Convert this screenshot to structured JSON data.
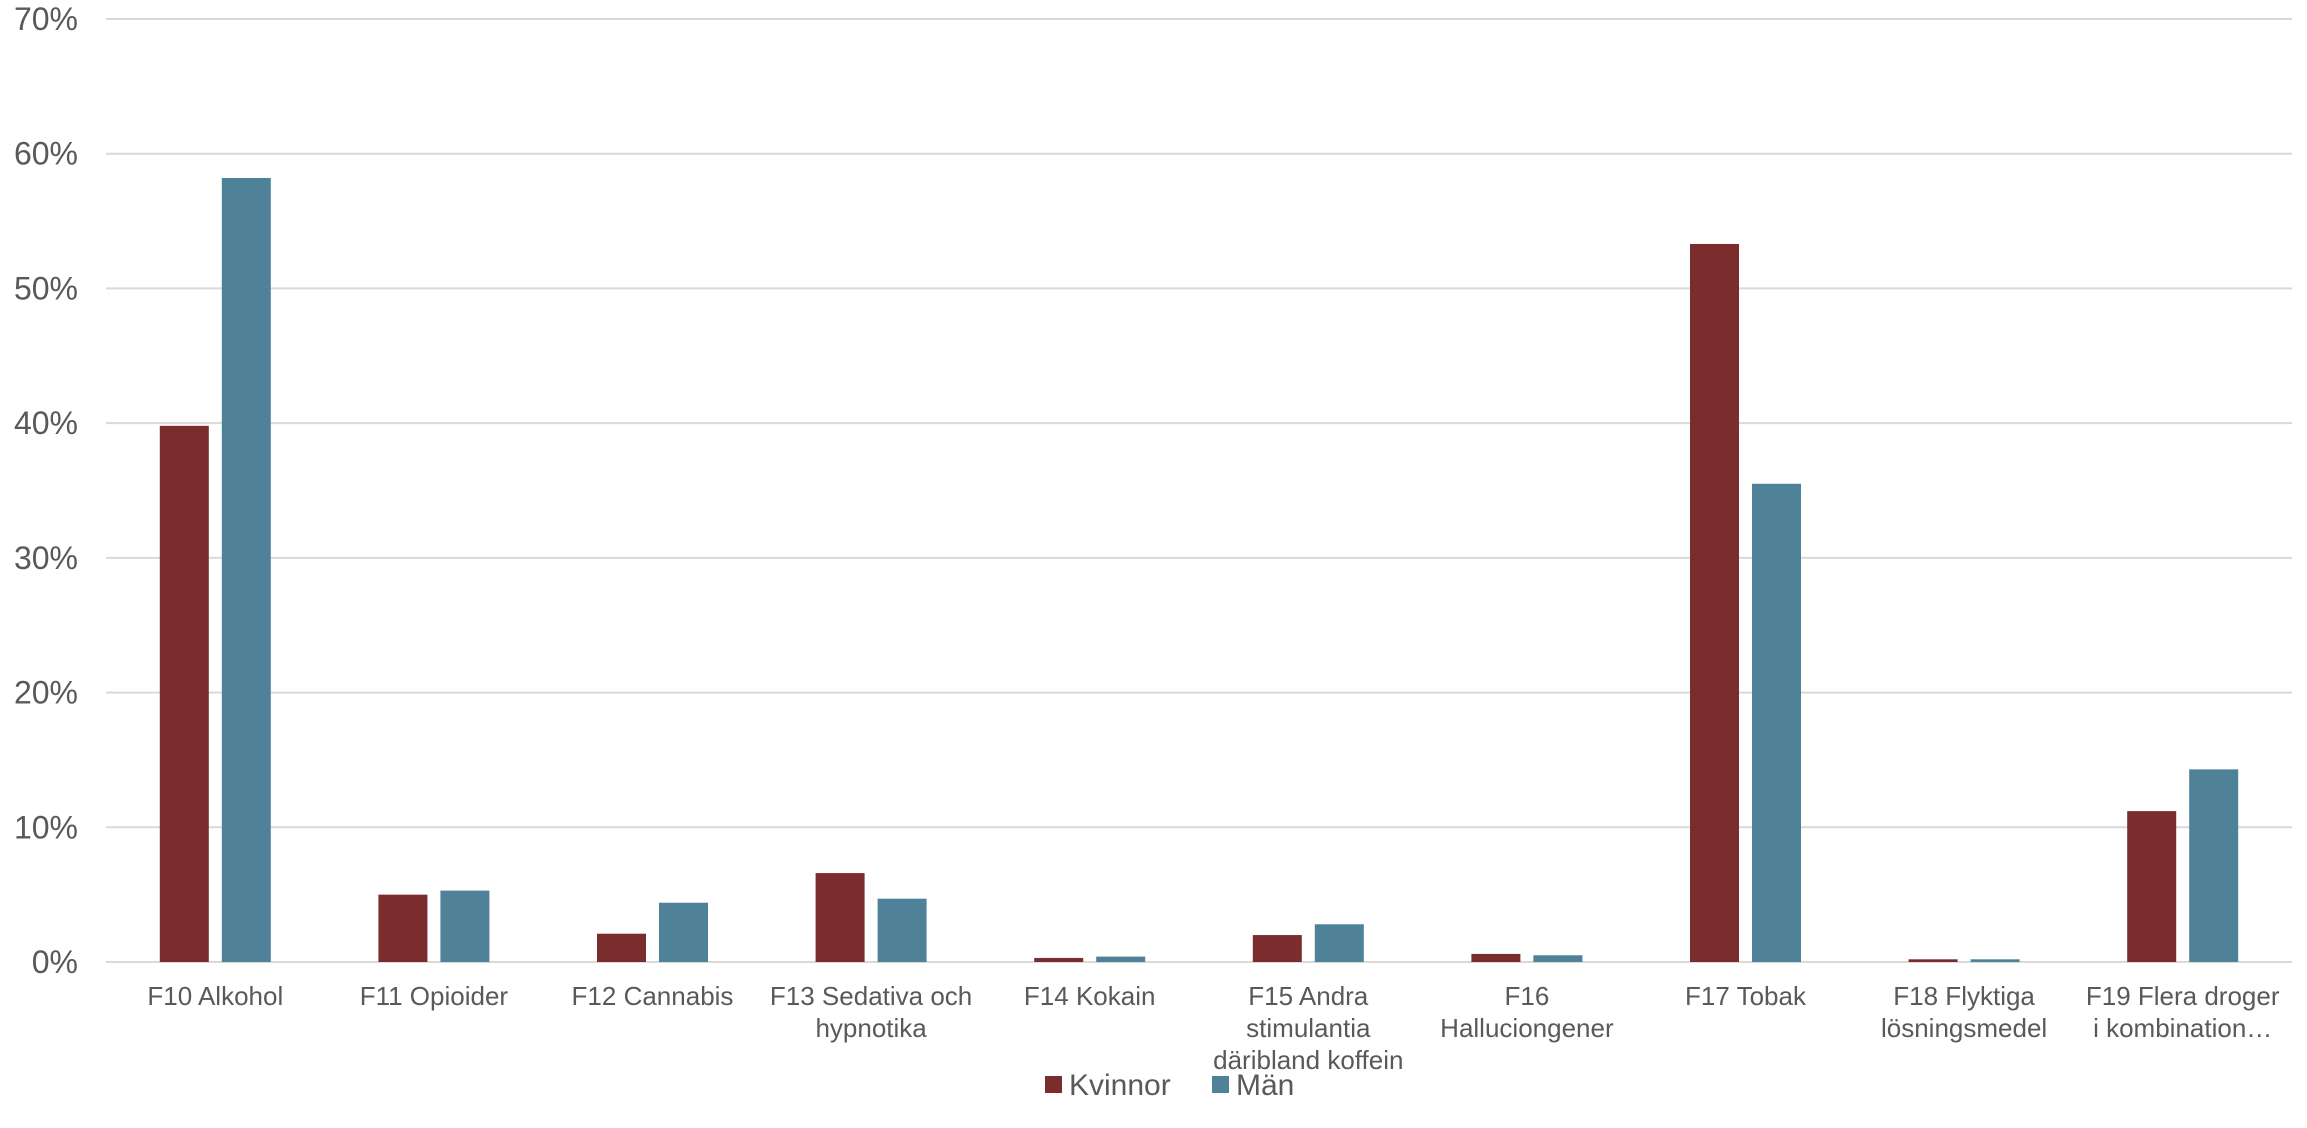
{
  "chart_data": {
    "type": "bar",
    "title": "",
    "xlabel": "",
    "ylabel": "",
    "ylim": [
      0,
      70
    ],
    "yticks": [
      0,
      10,
      20,
      30,
      40,
      50,
      60,
      70
    ],
    "ytick_labels": [
      "0%",
      "10%",
      "20%",
      "30%",
      "40%",
      "50%",
      "60%",
      "70%"
    ],
    "grid": true,
    "legend_position": "bottom",
    "categories": [
      [
        "F10 Alkohol"
      ],
      [
        "F11 Opioider"
      ],
      [
        "F12 Cannabis"
      ],
      [
        "F13 Sedativa och",
        "hypnotika"
      ],
      [
        "F14 Kokain"
      ],
      [
        "F15 Andra",
        "stimulantia",
        "däribland koffein"
      ],
      [
        "F16",
        "Halluciongener"
      ],
      [
        "F17 Tobak"
      ],
      [
        "F18 Flyktiga",
        "lösningsmedel"
      ],
      [
        "F19 Flera droger",
        "i kombination…"
      ]
    ],
    "series": [
      {
        "name": "Kvinnor",
        "color": "#7b2c2c",
        "values": [
          39.8,
          5.0,
          2.1,
          6.6,
          0.3,
          2.0,
          0.6,
          53.3,
          0.2,
          11.2
        ]
      },
      {
        "name": "Män",
        "color": "#4f8199",
        "values": [
          58.2,
          5.3,
          4.4,
          4.7,
          0.4,
          2.8,
          0.5,
          35.5,
          0.2,
          14.3
        ]
      }
    ]
  }
}
